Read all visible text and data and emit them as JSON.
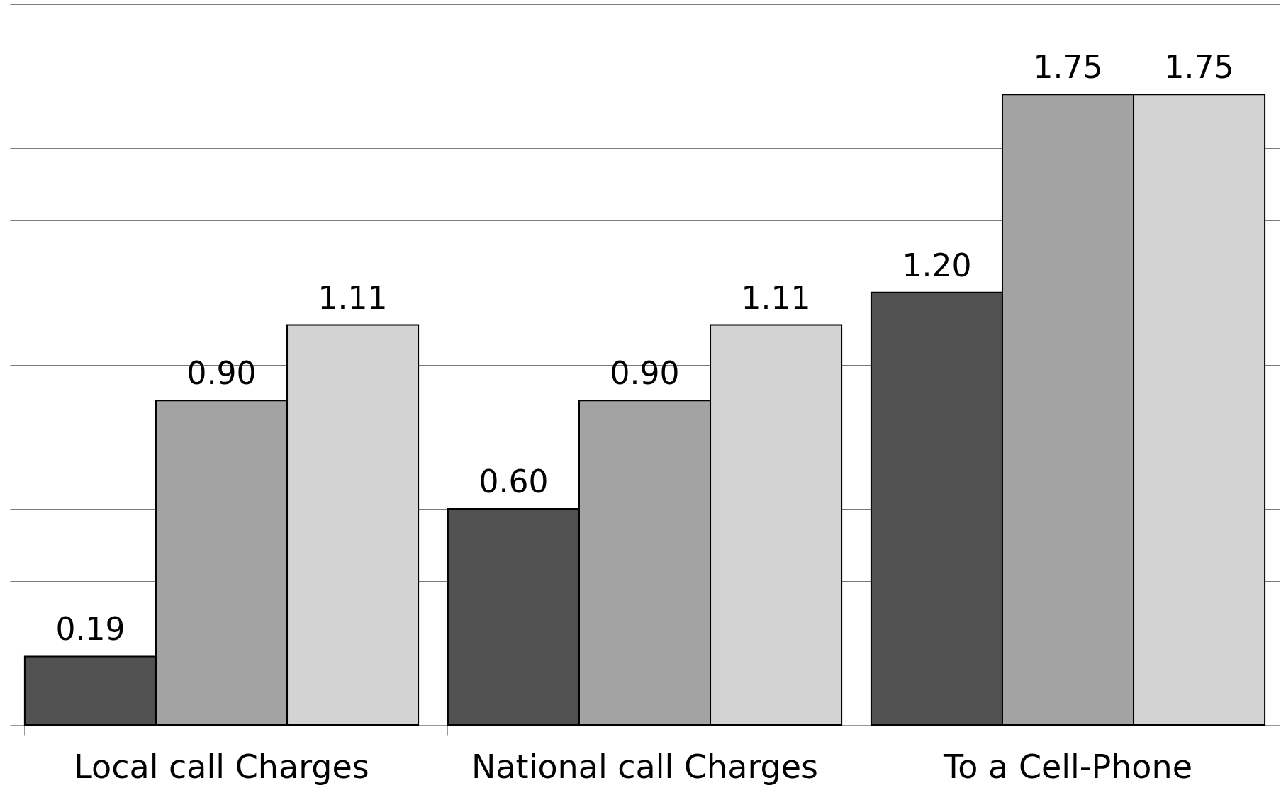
{
  "chart_data": {
    "type": "bar",
    "categories": [
      "Local call Charges",
      "National call Charges",
      "To a Cell-Phone"
    ],
    "series": [
      {
        "color": "#515151",
        "values": [
          0.19,
          0.6,
          1.2
        ],
        "value_labels": [
          "0.19",
          "0.60",
          "1.20"
        ]
      },
      {
        "color": "#a3a3a3",
        "values": [
          0.9,
          0.9,
          1.75
        ],
        "value_labels": [
          "0.90",
          "0.90",
          "1.75"
        ]
      },
      {
        "color": "#d3d3d3",
        "values": [
          1.11,
          1.11,
          1.75
        ],
        "value_labels": [
          "1.11",
          "1.11",
          "1.75"
        ]
      }
    ],
    "ylim": [
      0,
      2
    ],
    "yticks": [
      {
        "value": 0.2,
        "label": null
      },
      {
        "value": 0.4,
        "label": null
      },
      {
        "value": 0.6,
        "label": null
      },
      {
        "value": 0.8,
        "label": null
      },
      {
        "value": 1.0,
        "label": null
      },
      {
        "value": 1.2,
        "label": null
      },
      {
        "value": 1.4,
        "label": null
      },
      {
        "value": 1.6,
        "label": null
      },
      {
        "value": 1.8,
        "label": null
      },
      {
        "value": 2.0,
        "label": null
      }
    ],
    "grid": "y",
    "legend": false,
    "tick_labels": "x"
  }
}
